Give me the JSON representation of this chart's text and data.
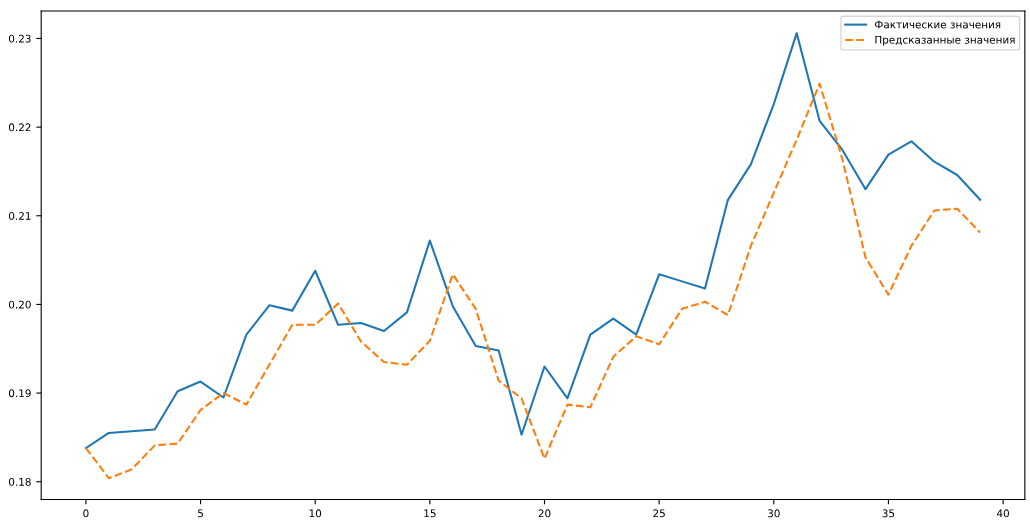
{
  "chart_data": {
    "type": "line",
    "x": [
      0,
      1,
      2,
      3,
      4,
      5,
      6,
      7,
      8,
      9,
      10,
      11,
      12,
      13,
      14,
      15,
      16,
      17,
      18,
      19,
      20,
      21,
      22,
      23,
      24,
      25,
      26,
      27,
      28,
      29,
      30,
      31,
      32,
      33,
      34,
      35,
      36,
      37,
      38,
      39
    ],
    "series": [
      {
        "name": "Фактические значения",
        "color": "#1f77b4",
        "line_style": "solid",
        "values": [
          0.1838,
          0.1855,
          0.1857,
          0.1859,
          0.1902,
          0.1913,
          0.1895,
          0.1966,
          0.1999,
          0.1993,
          0.2038,
          0.1977,
          0.1979,
          0.197,
          0.1991,
          0.2072,
          0.1998,
          0.1953,
          0.1948,
          0.1853,
          0.193,
          0.1894,
          0.1966,
          0.1984,
          0.1966,
          0.2034,
          0.2026,
          0.2018,
          0.2118,
          0.2158,
          0.2226,
          0.2306,
          0.2207,
          0.2174,
          0.213,
          0.2169,
          0.2184,
          0.2161,
          0.2146,
          0.2118
        ]
      },
      {
        "name": "Предсказанные значения",
        "color": "#ff7f0e",
        "line_style": "dashed",
        "values": [
          0.1838,
          0.1804,
          0.1814,
          0.1841,
          0.1843,
          0.1881,
          0.19,
          0.1887,
          0.1932,
          0.1977,
          0.1977,
          0.2001,
          0.1958,
          0.1935,
          0.1932,
          0.1959,
          0.2034,
          0.1995,
          0.1914,
          0.1894,
          0.1826,
          0.1887,
          0.1884,
          0.1941,
          0.1964,
          0.1955,
          0.1995,
          0.2003,
          0.1988,
          0.2066,
          0.2126,
          0.2186,
          0.2249,
          0.2163,
          0.2053,
          0.2011,
          0.2066,
          0.2106,
          0.2108,
          0.2081
        ]
      }
    ],
    "xlim": [
      -1.95,
      40.95
    ],
    "xticks": [
      0,
      5,
      10,
      15,
      20,
      25,
      30,
      35,
      40
    ],
    "ylim": [
      0.178,
      0.2331
    ],
    "yticks": [
      0.18,
      0.19,
      {
        "value": 0.2,
        "label": "0.20"
      },
      0.21,
      0.22,
      0.23
    ],
    "legend": "top right",
    "grid": false
  }
}
